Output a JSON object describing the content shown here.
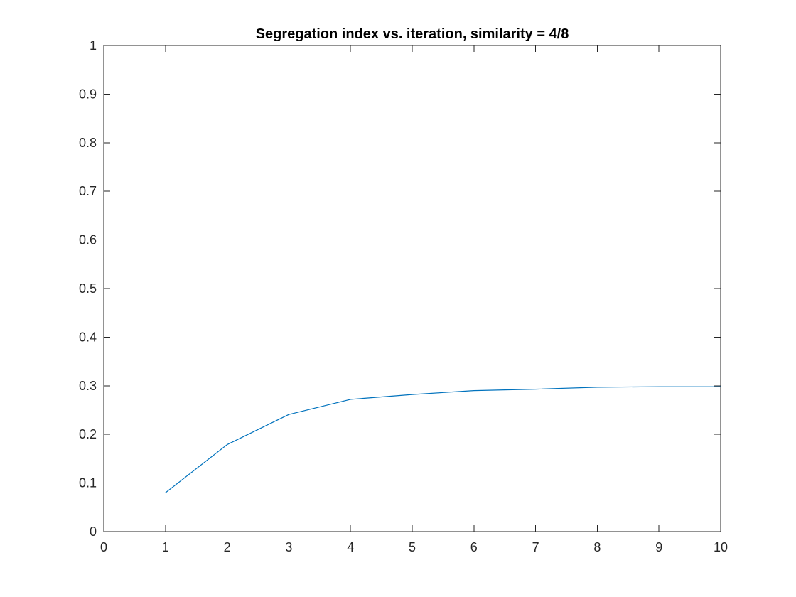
{
  "chart_data": {
    "type": "line",
    "title": "Segregation index vs. iteration, similarity = 4/8",
    "xlabel": "",
    "ylabel": "",
    "xlim": [
      0,
      10
    ],
    "ylim": [
      0,
      1
    ],
    "x_ticks": [
      0,
      1,
      2,
      3,
      4,
      5,
      6,
      7,
      8,
      9,
      10
    ],
    "y_ticks": [
      0,
      0.1,
      0.2,
      0.3,
      0.4,
      0.5,
      0.6,
      0.7,
      0.8,
      0.9,
      1
    ],
    "x_tick_labels": [
      "0",
      "1",
      "2",
      "3",
      "4",
      "5",
      "6",
      "7",
      "8",
      "9",
      "10"
    ],
    "y_tick_labels": [
      "0",
      "0.1",
      "0.2",
      "0.3",
      "0.4",
      "0.5",
      "0.6",
      "0.7",
      "0.8",
      "0.9",
      "1"
    ],
    "grid": false,
    "box": true,
    "series": [
      {
        "color": "#0072BD",
        "x": [
          1,
          2,
          3,
          4,
          5,
          6,
          7,
          8,
          9,
          10
        ],
        "y": [
          0.08,
          0.179,
          0.241,
          0.272,
          0.282,
          0.29,
          0.293,
          0.297,
          0.298,
          0.298
        ]
      }
    ]
  }
}
